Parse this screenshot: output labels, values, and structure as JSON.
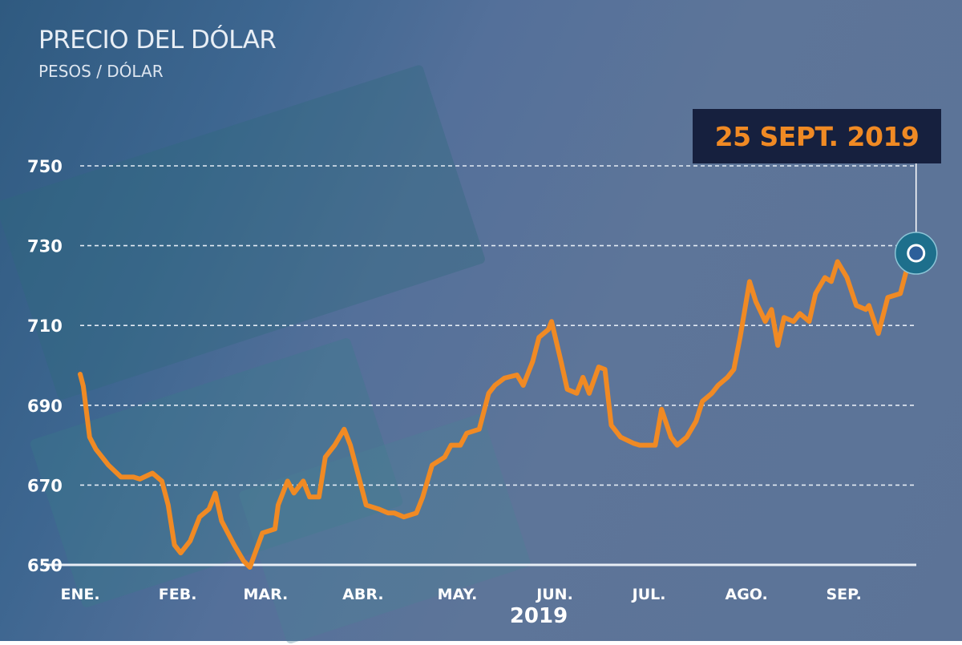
{
  "chart_data": {
    "type": "line",
    "title": "PRECIO DEL DÓLAR",
    "subtitle": "PESOS / DÓLAR",
    "xlabel": "2019",
    "ylabel": "",
    "ylim": [
      650,
      750
    ],
    "yticks": [
      650,
      670,
      690,
      710,
      730,
      750
    ],
    "xticks": [
      {
        "date": "2019-01-01",
        "label": "ENE."
      },
      {
        "date": "2019-02-01",
        "label": "FEB."
      },
      {
        "date": "2019-03-01",
        "label": "MAR."
      },
      {
        "date": "2019-04-01",
        "label": "ABR."
      },
      {
        "date": "2019-05-01",
        "label": "MAY."
      },
      {
        "date": "2019-06-01",
        "label": "JUN."
      },
      {
        "date": "2019-07-01",
        "label": "JUL."
      },
      {
        "date": "2019-08-01",
        "label": "AGO."
      },
      {
        "date": "2019-09-01",
        "label": "SEP."
      }
    ],
    "grid": "horizontal-dashed",
    "line_color": "#f08a24",
    "annotation": {
      "label": "25 SEPT. 2019",
      "date": "2019-09-25"
    },
    "points": [
      [
        "2019-01-02",
        697.8
      ],
      [
        "2019-01-03",
        694.8
      ],
      [
        "2019-01-05",
        682
      ],
      [
        "2019-01-07",
        679
      ],
      [
        "2019-01-11",
        675
      ],
      [
        "2019-01-15",
        672
      ],
      [
        "2019-01-19",
        672
      ],
      [
        "2019-01-21",
        671.5
      ],
      [
        "2019-01-25",
        673
      ],
      [
        "2019-01-28",
        671
      ],
      [
        "2019-01-30",
        665
      ],
      [
        "2019-02-01",
        655
      ],
      [
        "2019-02-03",
        653
      ],
      [
        "2019-02-06",
        656
      ],
      [
        "2019-02-09",
        662
      ],
      [
        "2019-02-12",
        664
      ],
      [
        "2019-02-14",
        668
      ],
      [
        "2019-02-16",
        661
      ],
      [
        "2019-02-20",
        655
      ],
      [
        "2019-02-23",
        651
      ],
      [
        "2019-02-25",
        649.4
      ],
      [
        "2019-03-01",
        658
      ],
      [
        "2019-03-05",
        659
      ],
      [
        "2019-03-06",
        665
      ],
      [
        "2019-03-09",
        671
      ],
      [
        "2019-03-11",
        668
      ],
      [
        "2019-03-14",
        671
      ],
      [
        "2019-03-16",
        667
      ],
      [
        "2019-03-19",
        667
      ],
      [
        "2019-03-21",
        677
      ],
      [
        "2019-03-24",
        680
      ],
      [
        "2019-03-27",
        684
      ],
      [
        "2019-03-29",
        680
      ],
      [
        "2019-04-01",
        671
      ],
      [
        "2019-04-03",
        665
      ],
      [
        "2019-04-07",
        664
      ],
      [
        "2019-04-10",
        663
      ],
      [
        "2019-04-12",
        663
      ],
      [
        "2019-04-15",
        662
      ],
      [
        "2019-04-19",
        663
      ],
      [
        "2019-04-21",
        667
      ],
      [
        "2019-04-24",
        675
      ],
      [
        "2019-04-28",
        677
      ],
      [
        "2019-04-30",
        680
      ],
      [
        "2019-05-03",
        680
      ],
      [
        "2019-05-05",
        683
      ],
      [
        "2019-05-09",
        684
      ],
      [
        "2019-05-12",
        693
      ],
      [
        "2019-05-14",
        695
      ],
      [
        "2019-05-17",
        696.8
      ],
      [
        "2019-05-21",
        697.6
      ],
      [
        "2019-05-23",
        695
      ],
      [
        "2019-05-26",
        701
      ],
      [
        "2019-05-28",
        707
      ],
      [
        "2019-05-31",
        709
      ],
      [
        "2019-06-01",
        711
      ],
      [
        "2019-06-04",
        701
      ],
      [
        "2019-06-06",
        694
      ],
      [
        "2019-06-09",
        693
      ],
      [
        "2019-06-11",
        697
      ],
      [
        "2019-06-13",
        693
      ],
      [
        "2019-06-16",
        699.6
      ],
      [
        "2019-06-18",
        699
      ],
      [
        "2019-06-20",
        685
      ],
      [
        "2019-06-23",
        682
      ],
      [
        "2019-06-27",
        680.5
      ],
      [
        "2019-06-29",
        680
      ],
      [
        "2019-07-02",
        680
      ],
      [
        "2019-07-04",
        680
      ],
      [
        "2019-07-06",
        689
      ],
      [
        "2019-07-09",
        682
      ],
      [
        "2019-07-11",
        680
      ],
      [
        "2019-07-14",
        682
      ],
      [
        "2019-07-17",
        686
      ],
      [
        "2019-07-19",
        691
      ],
      [
        "2019-07-22",
        693
      ],
      [
        "2019-07-24",
        695
      ],
      [
        "2019-07-27",
        697
      ],
      [
        "2019-07-29",
        699
      ],
      [
        "2019-07-31",
        707
      ],
      [
        "2019-08-03",
        721
      ],
      [
        "2019-08-05",
        716
      ],
      [
        "2019-08-08",
        711
      ],
      [
        "2019-08-10",
        714
      ],
      [
        "2019-08-12",
        705
      ],
      [
        "2019-08-14",
        712
      ],
      [
        "2019-08-17",
        711
      ],
      [
        "2019-08-19",
        713
      ],
      [
        "2019-08-22",
        711
      ],
      [
        "2019-08-24",
        718
      ],
      [
        "2019-08-27",
        722
      ],
      [
        "2019-08-29",
        721
      ],
      [
        "2019-08-31",
        726
      ],
      [
        "2019-09-03",
        722
      ],
      [
        "2019-09-06",
        715
      ],
      [
        "2019-09-09",
        714
      ],
      [
        "2019-09-10",
        715
      ],
      [
        "2019-09-13",
        708
      ],
      [
        "2019-09-16",
        717
      ],
      [
        "2019-09-20",
        718
      ],
      [
        "2019-09-22",
        724
      ],
      [
        "2019-09-25",
        727.7
      ]
    ]
  }
}
